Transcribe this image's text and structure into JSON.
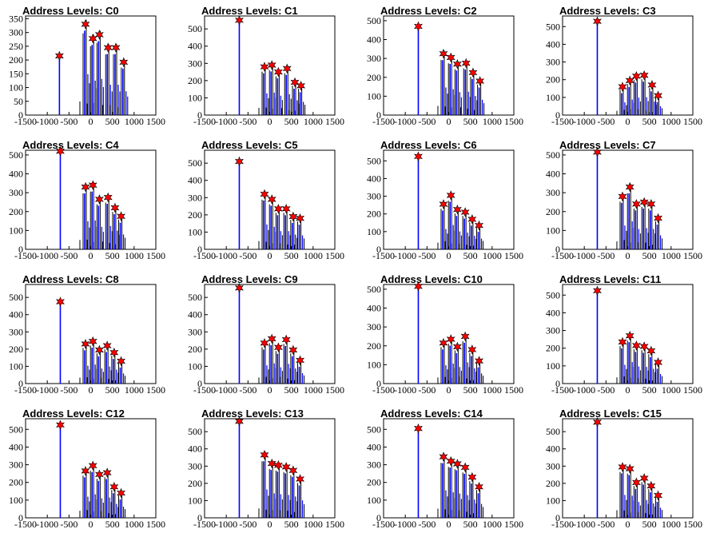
{
  "chart_data": [
    {
      "type": "bar",
      "title": "Address Levels: C0",
      "xlim": [
        -1500,
        1500
      ],
      "ylim": [
        0,
        360
      ],
      "yticks": [
        0,
        50,
        100,
        150,
        200,
        250,
        300,
        350
      ],
      "xticks": [
        -1500,
        -1000,
        -500,
        0,
        500,
        1000,
        1500
      ],
      "peaks": [
        {
          "x": -720,
          "y": 215
        },
        {
          "x": -120,
          "y": 330
        },
        {
          "x": 50,
          "y": 278
        },
        {
          "x": 200,
          "y": 292
        },
        {
          "x": 400,
          "y": 245
        },
        {
          "x": 580,
          "y": 245
        },
        {
          "x": 760,
          "y": 192
        }
      ]
    },
    {
      "type": "bar",
      "title": "Address Levels: C1",
      "xlim": [
        -1500,
        1500
      ],
      "ylim": [
        0,
        575
      ],
      "yticks": [
        0,
        100,
        200,
        300,
        400,
        500
      ],
      "xticks": [
        -1500,
        -1000,
        -500,
        0,
        500,
        1000,
        1500
      ],
      "peaks": [
        {
          "x": -700,
          "y": 550
        },
        {
          "x": -120,
          "y": 280
        },
        {
          "x": 50,
          "y": 290
        },
        {
          "x": 200,
          "y": 250
        },
        {
          "x": 400,
          "y": 270
        },
        {
          "x": 580,
          "y": 190
        },
        {
          "x": 720,
          "y": 170
        }
      ]
    },
    {
      "type": "bar",
      "title": "Address Levels: C2",
      "xlim": [
        -1500,
        1500
      ],
      "ylim": [
        0,
        525
      ],
      "yticks": [
        0,
        100,
        200,
        300,
        400,
        500
      ],
      "xticks": [
        -1500,
        -1000,
        -500,
        0,
        500,
        1000,
        1500
      ],
      "peaks": [
        {
          "x": -700,
          "y": 470
        },
        {
          "x": -120,
          "y": 325
        },
        {
          "x": 50,
          "y": 305
        },
        {
          "x": 200,
          "y": 270
        },
        {
          "x": 400,
          "y": 275
        },
        {
          "x": 560,
          "y": 225
        },
        {
          "x": 720,
          "y": 180
        }
      ]
    },
    {
      "type": "bar",
      "title": "Address Levels: C3",
      "xlim": [
        -1500,
        1500
      ],
      "ylim": [
        0,
        560
      ],
      "yticks": [
        0,
        100,
        200,
        300,
        400,
        500
      ],
      "xticks": [
        -1500,
        -1000,
        -500,
        0,
        500,
        1000,
        1500
      ],
      "peaks": [
        {
          "x": -700,
          "y": 530
        },
        {
          "x": -120,
          "y": 160
        },
        {
          "x": 50,
          "y": 195
        },
        {
          "x": 200,
          "y": 220
        },
        {
          "x": 380,
          "y": 225
        },
        {
          "x": 560,
          "y": 170
        },
        {
          "x": 700,
          "y": 110
        }
      ]
    },
    {
      "type": "bar",
      "title": "Address Levels: C4",
      "xlim": [
        -1500,
        1500
      ],
      "ylim": [
        0,
        525
      ],
      "yticks": [
        0,
        100,
        200,
        300,
        400,
        500
      ],
      "xticks": [
        -1500,
        -1000,
        -500,
        0,
        500,
        1000,
        1500
      ],
      "peaks": [
        {
          "x": -700,
          "y": 520
        },
        {
          "x": -120,
          "y": 330
        },
        {
          "x": 50,
          "y": 340
        },
        {
          "x": 200,
          "y": 265
        },
        {
          "x": 400,
          "y": 275
        },
        {
          "x": 560,
          "y": 220
        },
        {
          "x": 700,
          "y": 175
        }
      ]
    },
    {
      "type": "bar",
      "title": "Address Levels: C5",
      "xlim": [
        -1500,
        1500
      ],
      "ylim": [
        0,
        575
      ],
      "yticks": [
        0,
        100,
        200,
        300,
        400,
        500
      ],
      "xticks": [
        -1500,
        -1000,
        -500,
        0,
        500,
        1000,
        1500
      ],
      "peaks": [
        {
          "x": -700,
          "y": 510
        },
        {
          "x": -120,
          "y": 320
        },
        {
          "x": 50,
          "y": 290
        },
        {
          "x": 200,
          "y": 235
        },
        {
          "x": 380,
          "y": 235
        },
        {
          "x": 540,
          "y": 190
        },
        {
          "x": 700,
          "y": 180
        }
      ]
    },
    {
      "type": "bar",
      "title": "Address Levels: C6",
      "xlim": [
        -1500,
        1500
      ],
      "ylim": [
        0,
        560
      ],
      "yticks": [
        0,
        100,
        200,
        300,
        400,
        500
      ],
      "xticks": [
        -1500,
        -1000,
        -500,
        0,
        500,
        1000,
        1500
      ],
      "peaks": [
        {
          "x": -700,
          "y": 525
        },
        {
          "x": -120,
          "y": 255
        },
        {
          "x": 50,
          "y": 305
        },
        {
          "x": 200,
          "y": 225
        },
        {
          "x": 380,
          "y": 210
        },
        {
          "x": 540,
          "y": 170
        },
        {
          "x": 700,
          "y": 135
        }
      ]
    },
    {
      "type": "bar",
      "title": "Address Levels: C7",
      "xlim": [
        -1500,
        1500
      ],
      "ylim": [
        0,
        525
      ],
      "yticks": [
        0,
        100,
        200,
        300,
        400,
        500
      ],
      "xticks": [
        -1500,
        -1000,
        -500,
        0,
        500,
        1000,
        1500
      ],
      "peaks": [
        {
          "x": -700,
          "y": 515
        },
        {
          "x": -120,
          "y": 280
        },
        {
          "x": 50,
          "y": 330
        },
        {
          "x": 200,
          "y": 240
        },
        {
          "x": 380,
          "y": 250
        },
        {
          "x": 540,
          "y": 240
        },
        {
          "x": 700,
          "y": 165
        }
      ]
    },
    {
      "type": "bar",
      "title": "Address Levels: C8",
      "xlim": [
        -1500,
        1500
      ],
      "ylim": [
        0,
        575
      ],
      "yticks": [
        0,
        100,
        200,
        300,
        400,
        500
      ],
      "xticks": [
        -1500,
        -1000,
        -500,
        0,
        500,
        1000,
        1500
      ],
      "peaks": [
        {
          "x": -700,
          "y": 475
        },
        {
          "x": -120,
          "y": 230
        },
        {
          "x": 50,
          "y": 245
        },
        {
          "x": 200,
          "y": 195
        },
        {
          "x": 380,
          "y": 220
        },
        {
          "x": 540,
          "y": 180
        },
        {
          "x": 700,
          "y": 130
        }
      ]
    },
    {
      "type": "bar",
      "title": "Address Levels: C9",
      "xlim": [
        -1500,
        1500
      ],
      "ylim": [
        0,
        575
      ],
      "yticks": [
        0,
        100,
        200,
        300,
        400,
        500
      ],
      "xticks": [
        -1500,
        -1000,
        -500,
        0,
        500,
        1000,
        1500
      ],
      "peaks": [
        {
          "x": -700,
          "y": 555
        },
        {
          "x": -120,
          "y": 235
        },
        {
          "x": 50,
          "y": 260
        },
        {
          "x": 200,
          "y": 210
        },
        {
          "x": 380,
          "y": 255
        },
        {
          "x": 540,
          "y": 195
        },
        {
          "x": 700,
          "y": 135
        }
      ]
    },
    {
      "type": "bar",
      "title": "Address Levels: C10",
      "xlim": [
        -1500,
        1500
      ],
      "ylim": [
        0,
        525
      ],
      "yticks": [
        0,
        100,
        200,
        300,
        400,
        500
      ],
      "xticks": [
        -1500,
        -1000,
        -500,
        0,
        500,
        1000,
        1500
      ],
      "peaks": [
        {
          "x": -700,
          "y": 515
        },
        {
          "x": -120,
          "y": 215
        },
        {
          "x": 50,
          "y": 235
        },
        {
          "x": 200,
          "y": 195
        },
        {
          "x": 380,
          "y": 250
        },
        {
          "x": 540,
          "y": 180
        },
        {
          "x": 700,
          "y": 120
        }
      ]
    },
    {
      "type": "bar",
      "title": "Address Levels: C11",
      "xlim": [
        -1500,
        1500
      ],
      "ylim": [
        0,
        560
      ],
      "yticks": [
        0,
        100,
        200,
        300,
        400,
        500
      ],
      "xticks": [
        -1500,
        -1000,
        -500,
        0,
        500,
        1000,
        1500
      ],
      "peaks": [
        {
          "x": -700,
          "y": 525
        },
        {
          "x": -120,
          "y": 235
        },
        {
          "x": 50,
          "y": 270
        },
        {
          "x": 200,
          "y": 215
        },
        {
          "x": 380,
          "y": 210
        },
        {
          "x": 540,
          "y": 185
        },
        {
          "x": 700,
          "y": 120
        }
      ]
    },
    {
      "type": "bar",
      "title": "Address Levels: C12",
      "xlim": [
        -1500,
        1500
      ],
      "ylim": [
        0,
        560
      ],
      "yticks": [
        0,
        100,
        200,
        300,
        400,
        500
      ],
      "xticks": [
        -1500,
        -1000,
        -500,
        0,
        500,
        1000,
        1500
      ],
      "peaks": [
        {
          "x": -700,
          "y": 525
        },
        {
          "x": -120,
          "y": 265
        },
        {
          "x": 50,
          "y": 295
        },
        {
          "x": 200,
          "y": 245
        },
        {
          "x": 380,
          "y": 255
        },
        {
          "x": 540,
          "y": 175
        },
        {
          "x": 700,
          "y": 140
        }
      ]
    },
    {
      "type": "bar",
      "title": "Address Levels: C13",
      "xlim": [
        -1500,
        1500
      ],
      "ylim": [
        0,
        575
      ],
      "yticks": [
        0,
        100,
        200,
        300,
        400,
        500
      ],
      "xticks": [
        -1500,
        -1000,
        -500,
        0,
        500,
        1000,
        1500
      ],
      "peaks": [
        {
          "x": -700,
          "y": 560
        },
        {
          "x": -120,
          "y": 365
        },
        {
          "x": 50,
          "y": 315
        },
        {
          "x": 200,
          "y": 305
        },
        {
          "x": 380,
          "y": 295
        },
        {
          "x": 540,
          "y": 275
        },
        {
          "x": 700,
          "y": 225
        }
      ]
    },
    {
      "type": "bar",
      "title": "Address Levels: C14",
      "xlim": [
        -1500,
        1500
      ],
      "ylim": [
        0,
        560
      ],
      "yticks": [
        0,
        100,
        200,
        300,
        400,
        500
      ],
      "xticks": [
        -1500,
        -1000,
        -500,
        0,
        500,
        1000,
        1500
      ],
      "peaks": [
        {
          "x": -700,
          "y": 505
        },
        {
          "x": -120,
          "y": 345
        },
        {
          "x": 50,
          "y": 320
        },
        {
          "x": 200,
          "y": 305
        },
        {
          "x": 380,
          "y": 285
        },
        {
          "x": 540,
          "y": 230
        },
        {
          "x": 700,
          "y": 175
        }
      ]
    },
    {
      "type": "bar",
      "title": "Address Levels: C15",
      "xlim": [
        -1500,
        1500
      ],
      "ylim": [
        0,
        575
      ],
      "yticks": [
        0,
        100,
        200,
        300,
        400,
        500
      ],
      "xticks": [
        -1500,
        -1000,
        -500,
        0,
        500,
        1000,
        1500
      ],
      "peaks": [
        {
          "x": -700,
          "y": 555
        },
        {
          "x": -120,
          "y": 295
        },
        {
          "x": 50,
          "y": 285
        },
        {
          "x": 200,
          "y": 205
        },
        {
          "x": 380,
          "y": 230
        },
        {
          "x": 540,
          "y": 185
        },
        {
          "x": 700,
          "y": 130
        }
      ]
    }
  ],
  "colors": {
    "histogram_blue": "#0000ff",
    "histogram_black": "#000000",
    "peak_marker": "#ff0000",
    "frame": "#000000"
  }
}
